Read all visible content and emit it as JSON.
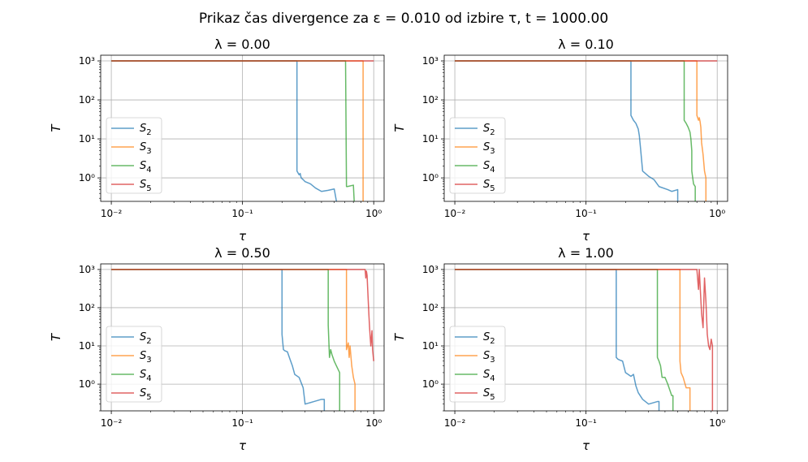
{
  "suptitle": "Prikaz čas divergence za ε = 0.010 od izbire τ, t = 1000.00",
  "colors": {
    "S2": "#1f77b4",
    "S3": "#ff7f0e",
    "S4": "#2ca02c",
    "S5": "#d62728",
    "grid": "#b0b0b0"
  },
  "chart_data": [
    {
      "type": "line",
      "title": "λ = 0.00",
      "xlabel": "τ",
      "ylabel": "T",
      "xscale": "log",
      "yscale": "log",
      "xlim": [
        0.0083,
        1.2
      ],
      "ylim": [
        0.25,
        1400
      ],
      "xticks": [
        "10⁻²",
        "10⁻¹",
        "10⁰"
      ],
      "yticks": [
        "10⁰",
        "10¹",
        "10²",
        "10³"
      ],
      "grid": true,
      "legend_position": "center-left",
      "series": [
        {
          "name": "S2",
          "x": [
            0.01,
            0.26,
            0.26,
            0.27,
            0.275,
            0.28,
            0.29,
            0.3,
            0.33,
            0.36,
            0.4,
            0.45,
            0.5,
            0.52
          ],
          "y": [
            1000,
            1000,
            1.5,
            1.2,
            1.3,
            1.0,
            0.9,
            0.8,
            0.7,
            0.55,
            0.45,
            0.48,
            0.52,
            0.25
          ]
        },
        {
          "name": "S3",
          "x": [
            0.01,
            0.83,
            0.83
          ],
          "y": [
            1000,
            1000,
            0.25
          ]
        },
        {
          "name": "S4",
          "x": [
            0.01,
            0.61,
            0.62,
            0.63,
            0.7,
            0.71
          ],
          "y": [
            1000,
            1000,
            0.6,
            0.6,
            0.65,
            0.25
          ]
        },
        {
          "name": "S5",
          "x": [
            0.01,
            1.0
          ],
          "y": [
            1000,
            1000
          ]
        }
      ]
    },
    {
      "type": "line",
      "title": "λ = 0.10",
      "xlabel": "τ",
      "ylabel": "T",
      "xscale": "log",
      "yscale": "log",
      "xlim": [
        0.0083,
        1.2
      ],
      "ylim": [
        0.25,
        1400
      ],
      "xticks": [
        "10⁻²",
        "10⁻¹",
        "10⁰"
      ],
      "yticks": [
        "10⁰",
        "10¹",
        "10²",
        "10³"
      ],
      "grid": true,
      "legend_position": "center-left",
      "series": [
        {
          "name": "S2",
          "x": [
            0.01,
            0.22,
            0.22,
            0.23,
            0.24,
            0.25,
            0.255,
            0.26,
            0.27,
            0.3,
            0.33,
            0.36,
            0.42,
            0.45,
            0.5,
            0.5
          ],
          "y": [
            1000,
            1000,
            40,
            30,
            25,
            18,
            12,
            6,
            1.5,
            1.1,
            0.9,
            0.6,
            0.5,
            0.45,
            0.5,
            0.25
          ]
        },
        {
          "name": "S3",
          "x": [
            0.01,
            0.7,
            0.7,
            0.72,
            0.73,
            0.74,
            0.75,
            0.76,
            0.78,
            0.8,
            0.82,
            0.82
          ],
          "y": [
            1000,
            1000,
            40,
            30,
            35,
            28,
            20,
            8,
            4,
            1.5,
            1.0,
            0.25
          ]
        },
        {
          "name": "S4",
          "x": [
            0.01,
            0.56,
            0.56,
            0.58,
            0.6,
            0.62,
            0.63,
            0.64,
            0.64,
            0.66,
            0.68,
            0.68
          ],
          "y": [
            1000,
            1000,
            30,
            25,
            20,
            15,
            10,
            5,
            1.5,
            0.7,
            0.6,
            0.25
          ]
        },
        {
          "name": "S5",
          "x": [
            0.01,
            1.0
          ],
          "y": [
            1000,
            1000
          ]
        }
      ]
    },
    {
      "type": "line",
      "title": "λ = 0.50",
      "xlabel": "τ",
      "ylabel": "T",
      "xscale": "log",
      "yscale": "log",
      "xlim": [
        0.0083,
        1.2
      ],
      "ylim": [
        0.2,
        1400
      ],
      "xticks": [
        "10⁻²",
        "10⁻¹",
        "10⁰"
      ],
      "yticks": [
        "10⁰",
        "10¹",
        "10²",
        "10³"
      ],
      "grid": true,
      "legend_position": "center-left",
      "series": [
        {
          "name": "S2",
          "x": [
            0.01,
            0.2,
            0.2,
            0.205,
            0.21,
            0.22,
            0.23,
            0.24,
            0.25,
            0.27,
            0.29,
            0.3,
            0.35,
            0.4,
            0.42,
            0.42
          ],
          "y": [
            1000,
            1000,
            20,
            8,
            7.5,
            7.0,
            4.5,
            3.0,
            1.8,
            1.5,
            0.8,
            0.3,
            0.35,
            0.4,
            0.4,
            0.2
          ]
        },
        {
          "name": "S3",
          "x": [
            0.01,
            0.62,
            0.62,
            0.64,
            0.65,
            0.66,
            0.68,
            0.7,
            0.72,
            0.72
          ],
          "y": [
            1000,
            1000,
            8,
            12,
            5,
            10,
            3,
            1.5,
            1.0,
            0.2
          ]
        },
        {
          "name": "S4",
          "x": [
            0.01,
            0.45,
            0.45,
            0.46,
            0.47,
            0.48,
            0.5,
            0.52,
            0.55,
            0.55
          ],
          "y": [
            1000,
            1000,
            35,
            5,
            8,
            6,
            4,
            3,
            2,
            0.2
          ]
        },
        {
          "name": "S5",
          "x": [
            0.01,
            0.86,
            0.87,
            0.88,
            0.89,
            0.9,
            0.92,
            0.93,
            0.95,
            0.97,
            0.98,
            1.0
          ],
          "y": [
            1000,
            1000,
            600,
            900,
            700,
            300,
            60,
            30,
            10,
            25,
            8,
            4
          ]
        }
      ]
    },
    {
      "type": "line",
      "title": "λ = 1.00",
      "xlabel": "τ",
      "ylabel": "T",
      "xscale": "log",
      "yscale": "log",
      "xlim": [
        0.0083,
        1.2
      ],
      "ylim": [
        0.2,
        1400
      ],
      "xticks": [
        "10⁻²",
        "10⁻¹",
        "10⁰"
      ],
      "yticks": [
        "10⁰",
        "10¹",
        "10²",
        "10³"
      ],
      "grid": true,
      "legend_position": "center-left",
      "series": [
        {
          "name": "S2",
          "x": [
            0.01,
            0.17,
            0.17,
            0.175,
            0.18,
            0.19,
            0.2,
            0.22,
            0.23,
            0.24,
            0.25,
            0.27,
            0.3,
            0.35,
            0.36,
            0.36
          ],
          "y": [
            1000,
            1000,
            5,
            4.5,
            4.3,
            4.0,
            2.0,
            1.6,
            1.8,
            0.9,
            0.6,
            0.4,
            0.3,
            0.35,
            0.35,
            0.2
          ]
        },
        {
          "name": "S3",
          "x": [
            0.01,
            0.52,
            0.52,
            0.53,
            0.55,
            0.58,
            0.62,
            0.62
          ],
          "y": [
            1000,
            1000,
            4,
            2,
            1.5,
            0.8,
            0.8,
            0.2
          ]
        },
        {
          "name": "S4",
          "x": [
            0.01,
            0.35,
            0.35,
            0.36,
            0.37,
            0.38,
            0.4,
            0.42,
            0.45,
            0.46,
            0.46
          ],
          "y": [
            1000,
            1000,
            5,
            4.0,
            3.0,
            1.5,
            1.5,
            1.0,
            0.5,
            0.5,
            0.2
          ]
        },
        {
          "name": "S5",
          "x": [
            0.01,
            0.7,
            0.72,
            0.73,
            0.74,
            0.76,
            0.78,
            0.8,
            0.82,
            0.84,
            0.86,
            0.88,
            0.9,
            0.92,
            0.92
          ],
          "y": [
            1000,
            1000,
            300,
            1000,
            400,
            70,
            30,
            600,
            150,
            20,
            10,
            8,
            15,
            10,
            0.2
          ]
        }
      ]
    }
  ]
}
